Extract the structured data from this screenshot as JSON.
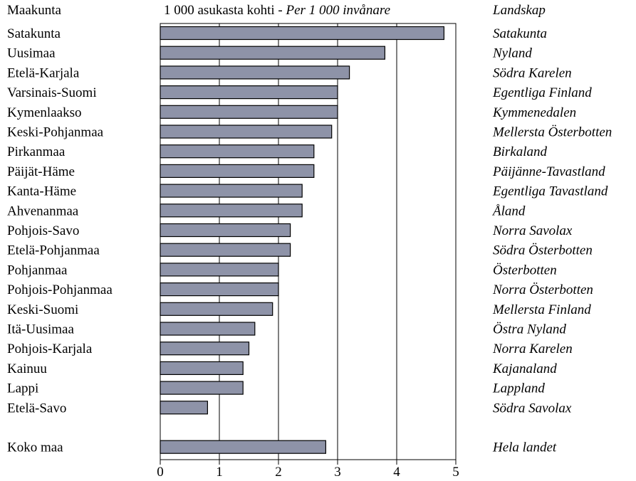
{
  "headers": {
    "left": "Maakunta",
    "center_fi": "1 000 asukasta kohti - ",
    "center_sv": "Per 1 000 invånare",
    "right": "Landskap"
  },
  "colors": {
    "bar_fill": "#8e93a8",
    "bar_stroke": "#000000",
    "axis": "#000000"
  },
  "chart_data": {
    "type": "bar",
    "orientation": "horizontal",
    "categories": [
      "Satakunta",
      "Uusimaa",
      "Etelä-Karjala",
      "Varsinais-Suomi",
      "Kymenlaakso",
      "Keski-Pohjanmaa",
      "Pirkanmaa",
      "Päijät-Häme",
      "Kanta-Häme",
      "Ahvenanmaa",
      "Pohjois-Savo",
      "Etelä-Pohjanmaa",
      "Pohjanmaa",
      "Pohjois-Pohjanmaa",
      "Keski-Suomi",
      "Itä-Uusimaa",
      "Pohjois-Karjala",
      "Kainuu",
      "Lappi",
      "Etelä-Savo",
      "Koko maa"
    ],
    "categories_sv": [
      "Satakunta",
      "Nyland",
      "Södra Karelen",
      "Egentliga Finland",
      "Kymmenedalen",
      "Mellersta Österbotten",
      "Birkaland",
      "Päijänne-Tavastland",
      "Egentliga Tavastland",
      "Åland",
      "Norra Savolax",
      "Södra Österbotten",
      "Österbotten",
      "Norra Österbotten",
      "Mellersta Finland",
      "Östra Nyland",
      "Norra Karelen",
      "Kajanaland",
      "Lappland",
      "Södra Savolax",
      "Hela landet"
    ],
    "values": [
      4.8,
      3.8,
      3.2,
      3.0,
      3.0,
      2.9,
      2.6,
      2.6,
      2.4,
      2.4,
      2.2,
      2.2,
      2.0,
      2.0,
      1.9,
      1.6,
      1.5,
      1.4,
      1.4,
      0.8,
      2.8
    ],
    "xlim": [
      0,
      5
    ],
    "xticks": [
      0,
      1,
      2,
      3,
      4,
      5
    ],
    "grid": "vertical",
    "legend": "none"
  }
}
